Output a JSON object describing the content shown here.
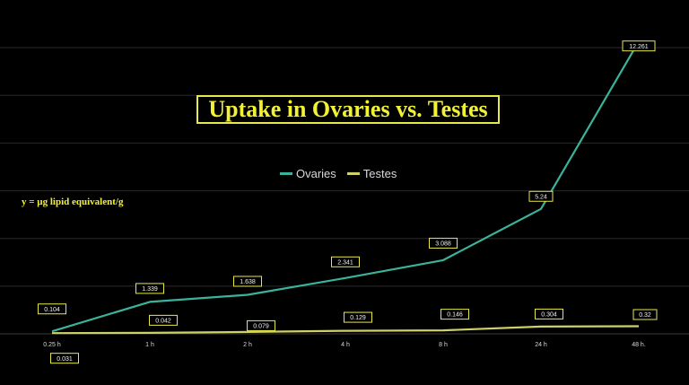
{
  "chart_data": {
    "type": "line",
    "title": "Uptake in Ovaries vs. Testes",
    "ylabel": "y = µg lipid equivalent/g",
    "xlabel": "",
    "categories": [
      "0.25 h",
      "1 h",
      "2 h",
      "4 h",
      "8 h",
      "24 h",
      "48 h."
    ],
    "series": [
      {
        "name": "Ovaries",
        "color": "#3bb39a",
        "values": [
          0.104,
          1.339,
          1.638,
          2.341,
          3.088,
          5.24,
          12.261
        ],
        "labels": [
          "0.104",
          "1.339",
          "1.638",
          "2.341",
          "3.088",
          "5.24",
          "12.261"
        ]
      },
      {
        "name": "Testes",
        "color": "#cfd06a",
        "values": [
          0.031,
          0.042,
          0.079,
          0.129,
          0.146,
          0.304,
          0.32
        ],
        "labels": [
          "0.031",
          "0.042",
          "0.079",
          "0.129",
          "0.146",
          "0.304",
          "0.32"
        ]
      }
    ],
    "ylim": [
      0,
      14
    ],
    "grid": true,
    "legend_position": "top-center",
    "colors": {
      "background": "#000000",
      "gridline": "#2a2a2a",
      "label_border": "#e8e84a",
      "title": "#f2f233"
    }
  }
}
